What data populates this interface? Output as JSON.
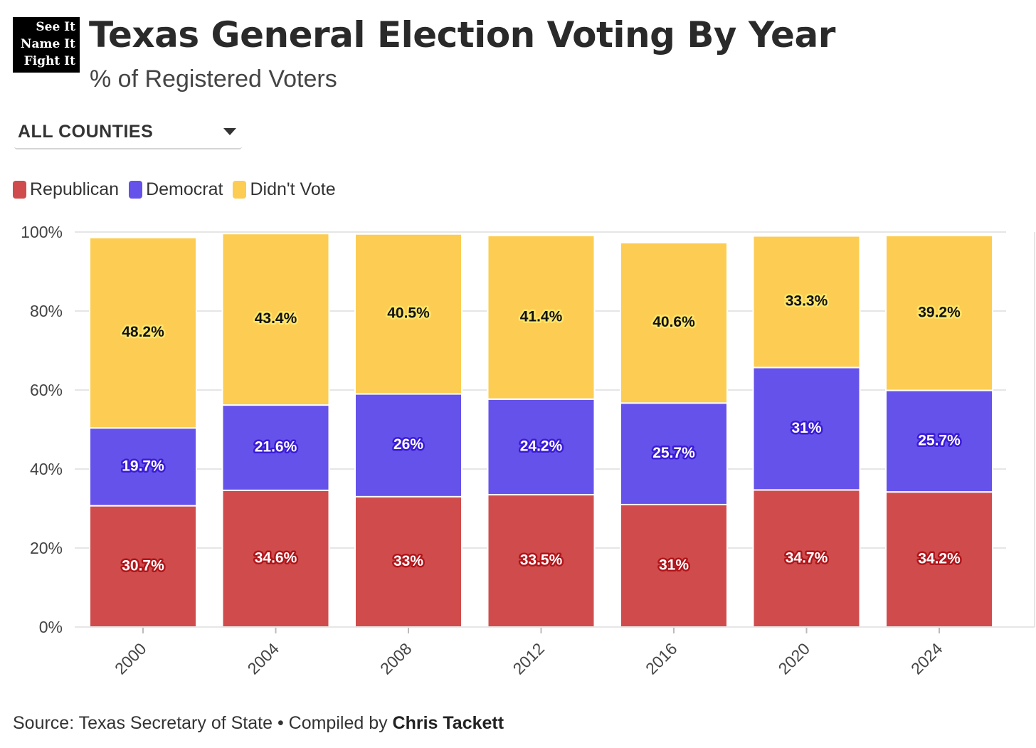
{
  "logo": {
    "lines": [
      "See It",
      "Name It",
      "Fight It"
    ]
  },
  "header": {
    "title": "Texas General Election Voting By Year",
    "subtitle": "% of Registered Voters"
  },
  "filter": {
    "selected": "ALL COUNTIES"
  },
  "colors": {
    "republican": "#d04c4c",
    "democrat": "#6552ea",
    "didnt_vote": "#fccd52"
  },
  "footer": {
    "source_prefix": "Source: Texas Secretary of State • Compiled by ",
    "author": "Chris Tackett"
  },
  "chart_data": {
    "type": "bar",
    "stacked": true,
    "categories": [
      "2000",
      "2004",
      "2008",
      "2012",
      "2016",
      "2020",
      "2024"
    ],
    "series": [
      {
        "name": "Republican",
        "values": [
          30.7,
          34.6,
          33,
          33.5,
          31,
          34.7,
          34.2
        ],
        "labels": [
          "30.7%",
          "34.6%",
          "33%",
          "33.5%",
          "31%",
          "34.7%",
          "34.2%"
        ]
      },
      {
        "name": "Democrat",
        "values": [
          19.7,
          21.6,
          26,
          24.2,
          25.7,
          31,
          25.7
        ],
        "labels": [
          "19.7%",
          "21.6%",
          "26%",
          "24.2%",
          "25.7%",
          "31%",
          "25.7%"
        ]
      },
      {
        "name": "Didn't Vote",
        "values": [
          48.2,
          43.4,
          40.5,
          41.4,
          40.6,
          33.3,
          39.2
        ],
        "labels": [
          "48.2%",
          "43.4%",
          "40.5%",
          "41.4%",
          "40.6%",
          "33.3%",
          "39.2%"
        ]
      }
    ],
    "ylim": [
      0,
      100
    ],
    "yticks": [
      "0%",
      "20%",
      "40%",
      "60%",
      "80%",
      "100%"
    ],
    "ytick_values": [
      0,
      20,
      40,
      60,
      80,
      100
    ],
    "grid": true,
    "legend": "top-left"
  }
}
